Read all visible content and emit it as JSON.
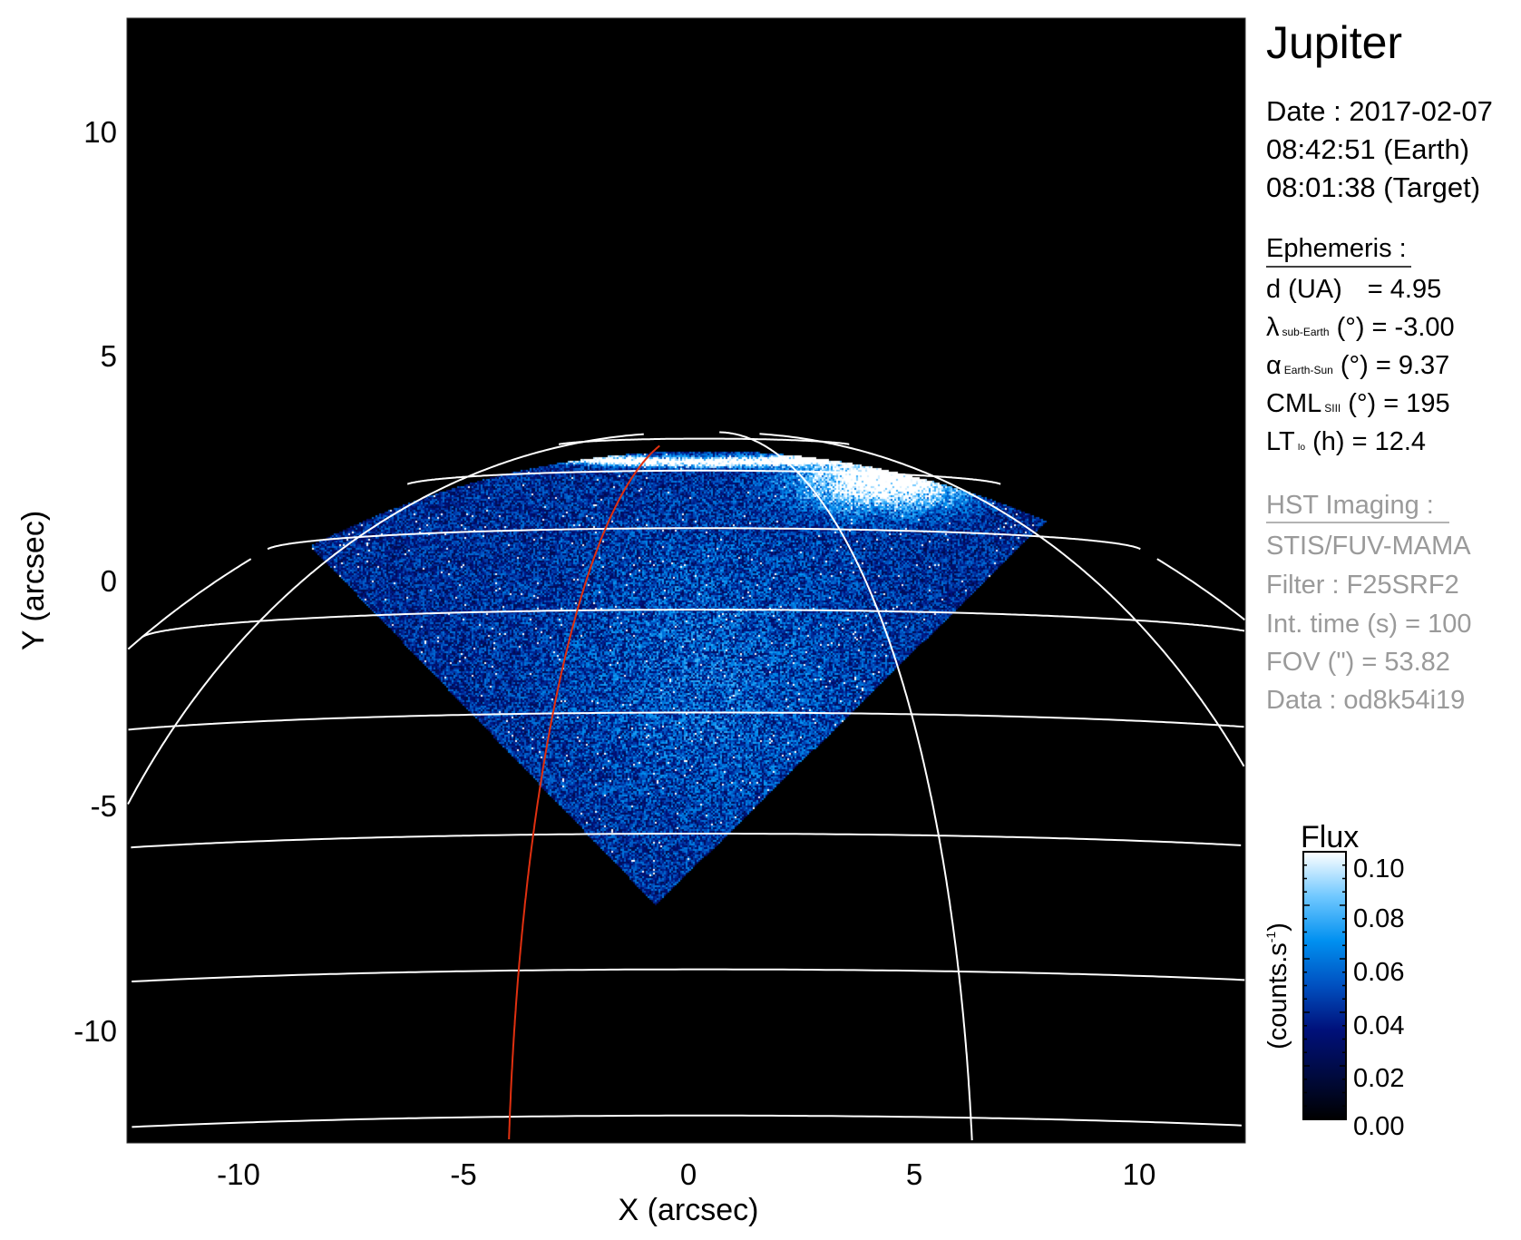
{
  "chart_data": {
    "type": "heatmap",
    "title": "Jupiter",
    "xlabel": "X (arcsec)",
    "ylabel": "Y (arcsec)",
    "xlim": [
      -12.5,
      12.5
    ],
    "ylim": [
      -12.5,
      12.5
    ],
    "xticks": [
      "-10",
      "-5",
      "0",
      "5",
      "10"
    ],
    "yticks": [
      "10",
      "5",
      "0",
      "-5",
      "-10"
    ],
    "xtick_values": [
      -10,
      -5,
      0,
      5,
      10
    ],
    "ytick_values": [
      10,
      5,
      0,
      -5,
      -10
    ],
    "grid": "planetographic lat/lon grid (white)",
    "highlight_meridian_color": "#e03010",
    "colorbar": {
      "title": "Flux",
      "label": "(counts.s",
      "label_sup": "-1",
      "label_end": ")",
      "range": [
        0.0,
        0.1
      ],
      "ticks": [
        "0.10",
        "0.08",
        "0.06",
        "0.04",
        "0.02",
        "0.00"
      ],
      "tick_values": [
        0.1,
        0.08,
        0.06,
        0.04,
        0.02,
        0.0
      ],
      "colormap": [
        "#000000",
        "#000a40",
        "#00107a",
        "#0050c0",
        "#0090f0",
        "#70c8ff",
        "#ffffff"
      ]
    }
  },
  "panel": {
    "target": "Jupiter",
    "date_line": "Date : 2017-02-07",
    "earth_time": "08:42:51 (Earth)",
    "target_time": "08:01:38 (Target)",
    "ephemeris_heading": "Ephemeris :",
    "ephemeris": {
      "d": {
        "label": "d (UA)",
        "value": "= 4.95"
      },
      "lat": {
        "symbol": "λ",
        "sub": "sub-Earth",
        "rest": " (°) = -3.00"
      },
      "phase": {
        "symbol": "α",
        "sub": "Earth-Sun",
        "rest": " (°) = 9.37"
      },
      "cml": {
        "symbol": "CML",
        "sub": "SIII",
        "rest": " (°) = 195"
      },
      "lt": {
        "symbol": "LT",
        "sub": "Io",
        "rest": " (h) = 12.4"
      }
    },
    "hst_heading": "HST Imaging :",
    "hst": [
      "STIS/FUV-MAMA",
      "Filter : F25SRF2",
      "Int. time (s) = 100",
      "FOV (\") = 53.82",
      "Data : od8k54i19"
    ]
  }
}
